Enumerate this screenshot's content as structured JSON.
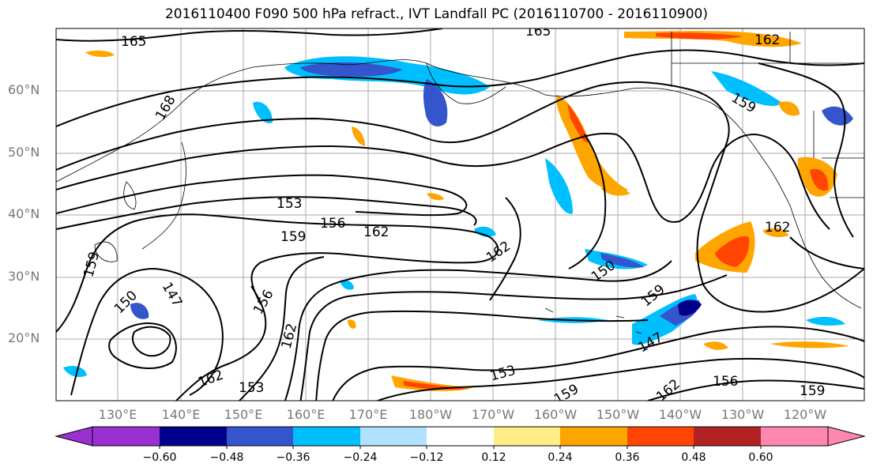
{
  "title": "2016110400 F090 500 hPa refract., IVT Landfall PC (2016110700 - 2016110900)",
  "lat_labels": [
    "60°N",
    "50°N",
    "40°N",
    "30°N",
    "20°N"
  ],
  "lon_labels": [
    "130°E",
    "140°E",
    "150°E",
    "160°E",
    "170°E",
    "180°W",
    "170°W",
    "160°W",
    "150°W",
    "140°W",
    "130°W",
    "120°W"
  ],
  "contour_labels": [
    "165",
    "168",
    "153",
    "156",
    "159",
    "162",
    "162",
    "162",
    "150",
    "147",
    "156",
    "162",
    "159",
    "162",
    "153",
    "150",
    "147",
    "153",
    "159",
    "159",
    "162",
    "159",
    "156",
    "162"
  ],
  "colorbar": {
    "colors": [
      "#9b30d0",
      "#00008b",
      "#3455cc",
      "#00bfff",
      "#b0e2ff",
      "#ffffff",
      "#ffee88",
      "#ffa500",
      "#ff4500",
      "#b22222",
      "#ff88b0"
    ],
    "ticks": [
      "−0.60",
      "−0.48",
      "−0.36",
      "−0.24",
      "−0.12",
      "0.12",
      "0.24",
      "0.36",
      "0.48",
      "0.60"
    ]
  },
  "colors": {
    "contour": "#000000",
    "grid": "#999999",
    "axis_label": "#777777"
  }
}
